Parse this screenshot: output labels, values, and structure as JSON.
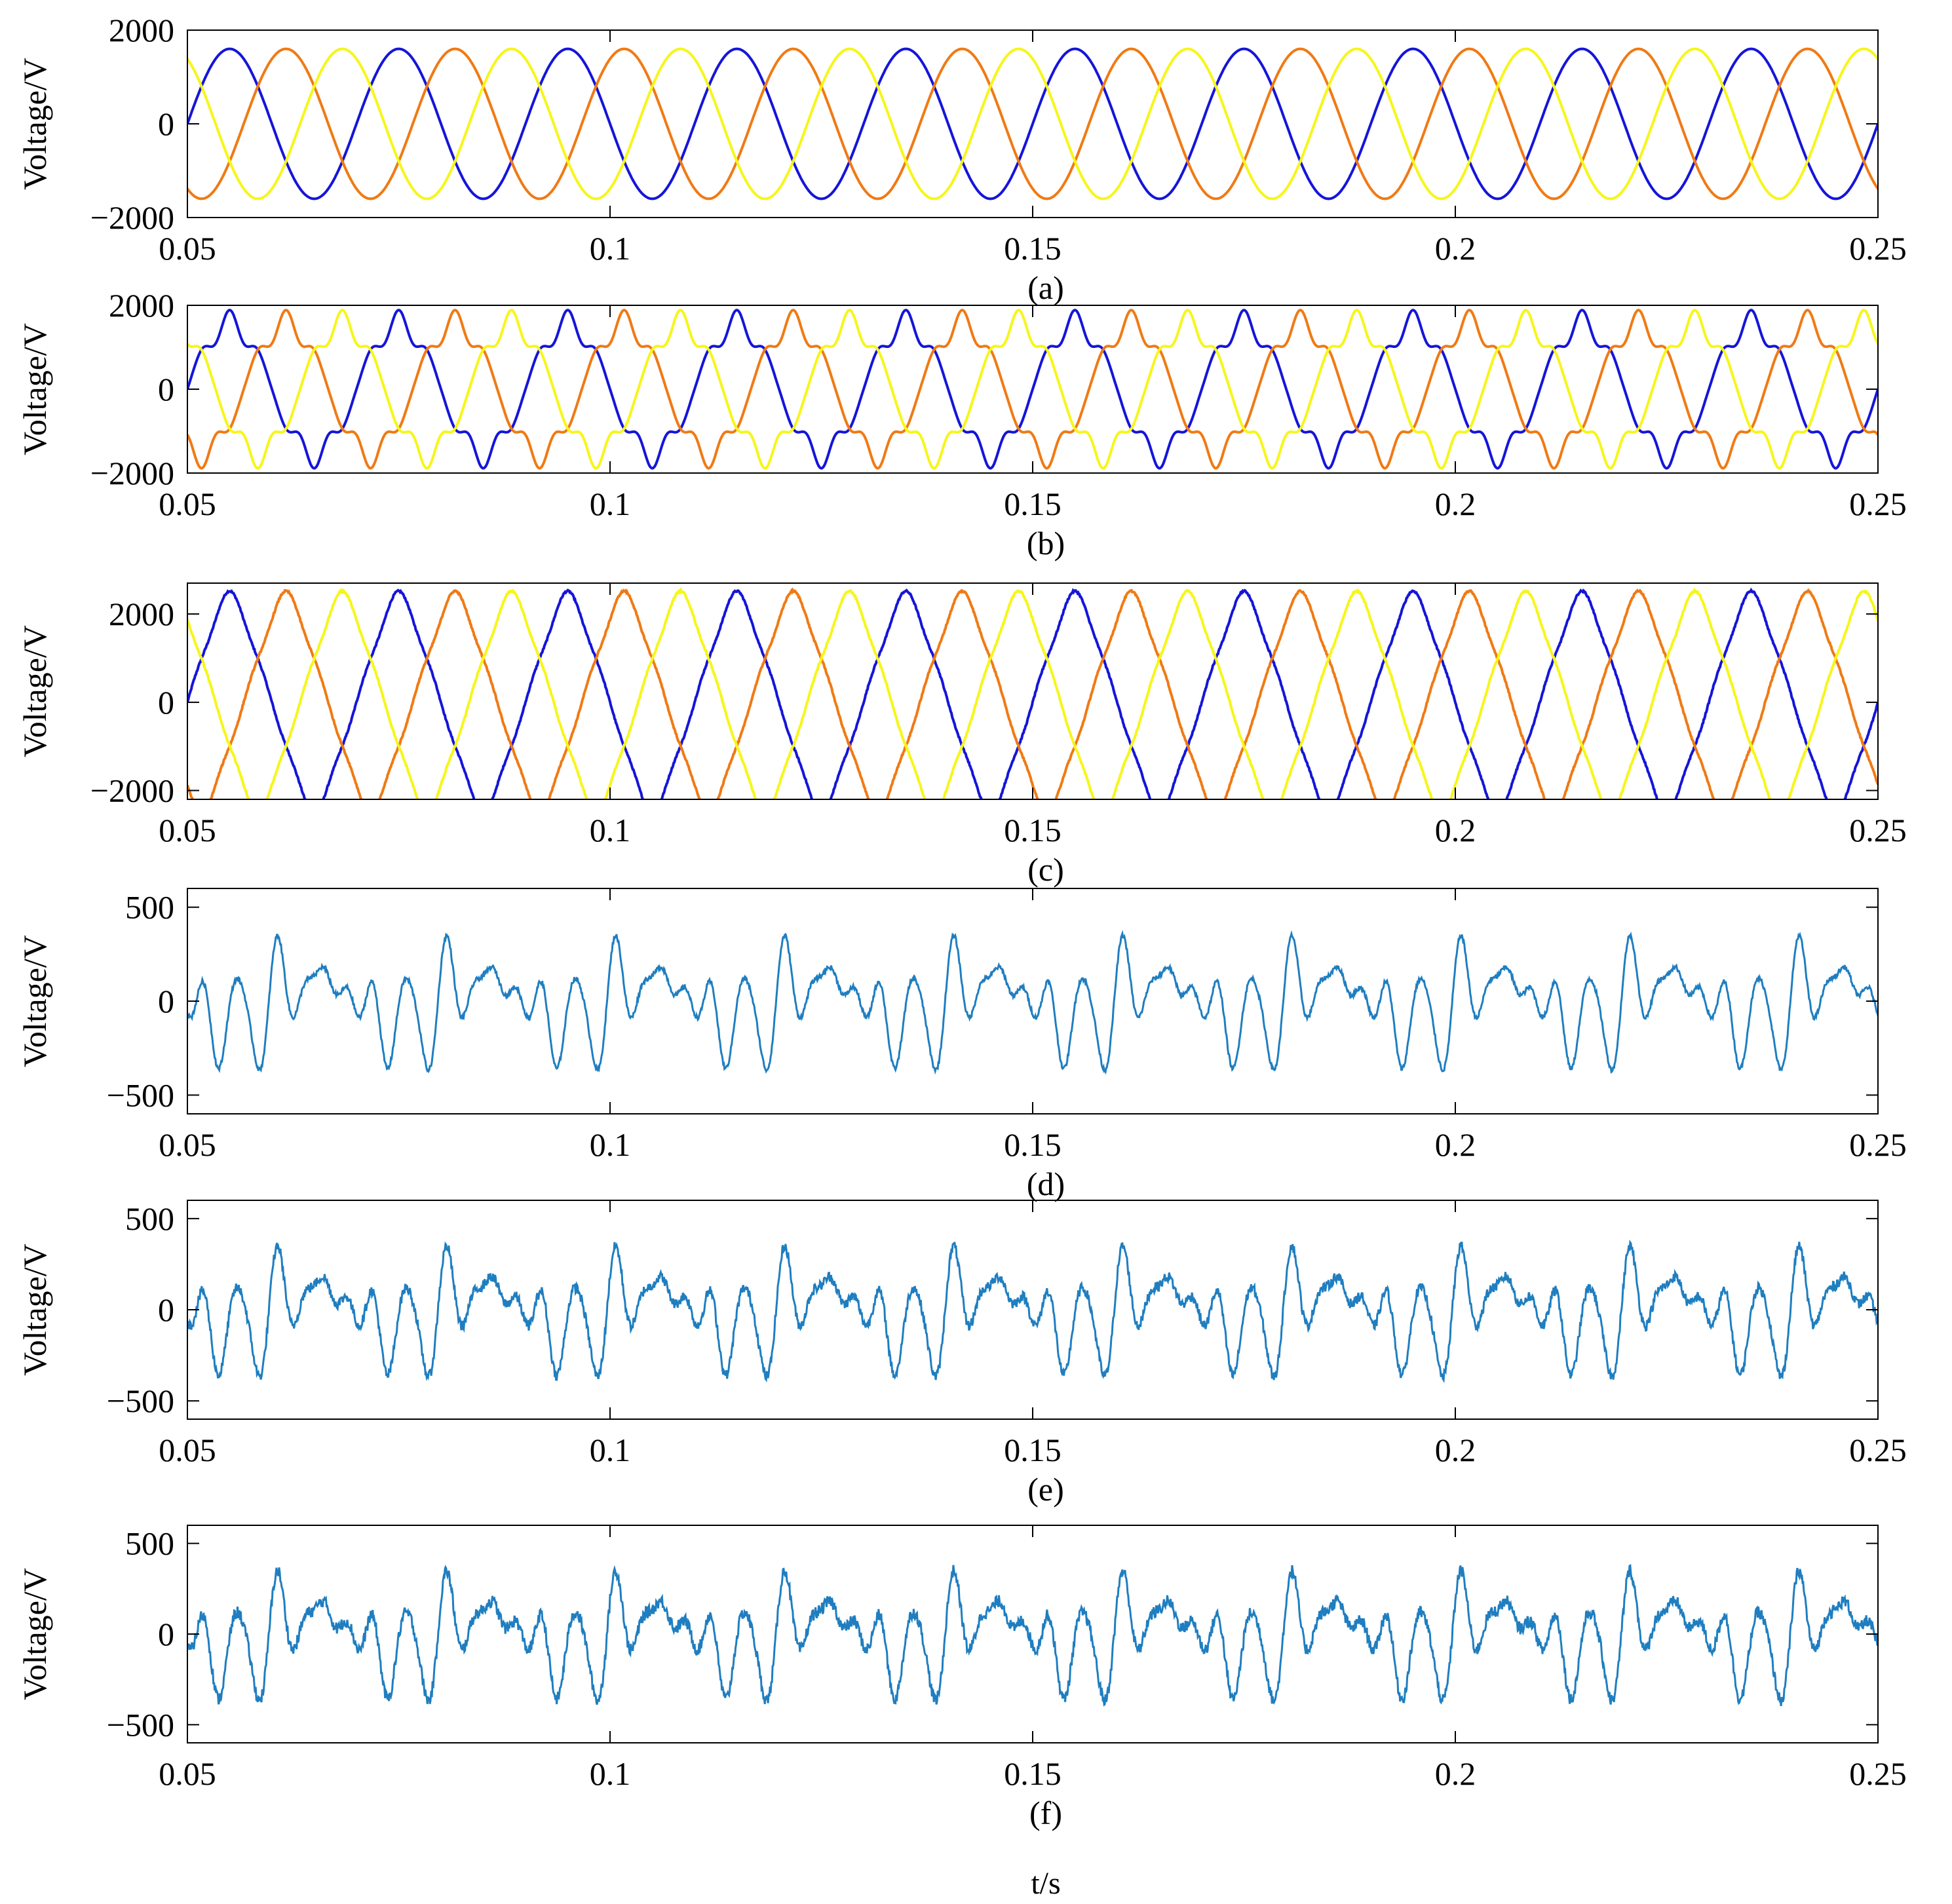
{
  "figure": {
    "xlabel": "t/s"
  },
  "colors": {
    "phase_a": "#1515d9",
    "phase_b": "#f07a14",
    "phase_c": "#f6f61a",
    "single": "#1f7ec0"
  },
  "chart_data": [
    {
      "type": "line",
      "panel_label": "(a)",
      "ylabel": "Voltage/V",
      "xlim": [
        0.05,
        0.25
      ],
      "ylim": [
        -2000,
        2000
      ],
      "xticks": [
        "0.05",
        "0.1",
        "0.15",
        "0.2",
        "0.25"
      ],
      "yticks": [
        "2000",
        "0",
        "−2000"
      ],
      "grid": false,
      "frequency_hz": 50,
      "series": [
        {
          "role": "phase-a",
          "color": "#1515d9",
          "amplitude": 1600,
          "phase_deg": 180
        },
        {
          "role": "phase-b",
          "color": "#f07a14",
          "amplitude": 1600,
          "phase_deg": 60
        },
        {
          "role": "phase-c",
          "color": "#f6f61a",
          "amplitude": 1600,
          "phase_deg": -60
        }
      ]
    },
    {
      "type": "line",
      "panel_label": "(b)",
      "ylabel": "Voltage/V",
      "xlim": [
        0.05,
        0.25
      ],
      "ylim": [
        -2000,
        2000
      ],
      "xticks": [
        "0.05",
        "0.1",
        "0.15",
        "0.2",
        "0.25"
      ],
      "yticks": [
        "2000",
        "0",
        "−2000"
      ],
      "grid": false,
      "frequency_hz": 50,
      "series": [
        {
          "role": "phase-a",
          "color": "#1515d9",
          "amplitude": 1650,
          "phase_deg": 180
        },
        {
          "role": "phase-b",
          "color": "#f07a14",
          "amplitude": 1650,
          "phase_deg": 60
        },
        {
          "role": "phase-c",
          "color": "#f6f61a",
          "amplitude": 1650,
          "phase_deg": -60
        }
      ]
    },
    {
      "type": "line",
      "panel_label": "(c)",
      "ylabel": "Voltage/V",
      "xlim": [
        0.05,
        0.25
      ],
      "ylim": [
        -2200,
        2700
      ],
      "xticks": [
        "0.05",
        "0.1",
        "0.15",
        "0.2",
        "0.25"
      ],
      "yticks": [
        "2000",
        "0",
        "−2000"
      ],
      "grid": false,
      "frequency_hz": 50,
      "series": [
        {
          "role": "phase-a",
          "color": "#1515d9",
          "amplitude": 2250,
          "phase_deg": 180
        },
        {
          "role": "phase-b",
          "color": "#f07a14",
          "amplitude": 2250,
          "phase_deg": 60
        },
        {
          "role": "phase-c",
          "color": "#f6f61a",
          "amplitude": 2250,
          "phase_deg": -60
        }
      ]
    },
    {
      "type": "line",
      "panel_label": "(d)",
      "ylabel": "Voltage/V",
      "xlim": [
        0.05,
        0.25
      ],
      "ylim": [
        -600,
        600
      ],
      "xticks": [
        "0.05",
        "0.1",
        "0.15",
        "0.2",
        "0.25"
      ],
      "yticks": [
        "500",
        "0",
        "−500"
      ],
      "grid": false,
      "period_s": 0.02,
      "series": [
        {
          "role": "voltage",
          "color": "#1f7ec0",
          "peak_max": 420,
          "peak_min": -440,
          "noise": 12
        }
      ]
    },
    {
      "type": "line",
      "panel_label": "(e)",
      "ylabel": "Voltage/V",
      "xlim": [
        0.05,
        0.25
      ],
      "ylim": [
        -600,
        600
      ],
      "xticks": [
        "0.05",
        "0.1",
        "0.15",
        "0.2",
        "0.25"
      ],
      "yticks": [
        "500",
        "0",
        "−500"
      ],
      "grid": false,
      "period_s": 0.02,
      "series": [
        {
          "role": "voltage",
          "color": "#1f7ec0",
          "peak_max": 460,
          "peak_min": -460,
          "noise": 28
        }
      ]
    },
    {
      "type": "line",
      "panel_label": "(f)",
      "ylabel": "Voltage/V",
      "xlim": [
        0.05,
        0.25
      ],
      "ylim": [
        -600,
        600
      ],
      "xticks": [
        "0.05",
        "0.1",
        "0.15",
        "0.2",
        "0.25"
      ],
      "yticks": [
        "500",
        "0",
        "−500"
      ],
      "grid": false,
      "period_s": 0.02,
      "series": [
        {
          "role": "voltage",
          "color": "#1f7ec0",
          "peak_max": 500,
          "peak_min": -490,
          "noise": 34
        }
      ]
    }
  ]
}
